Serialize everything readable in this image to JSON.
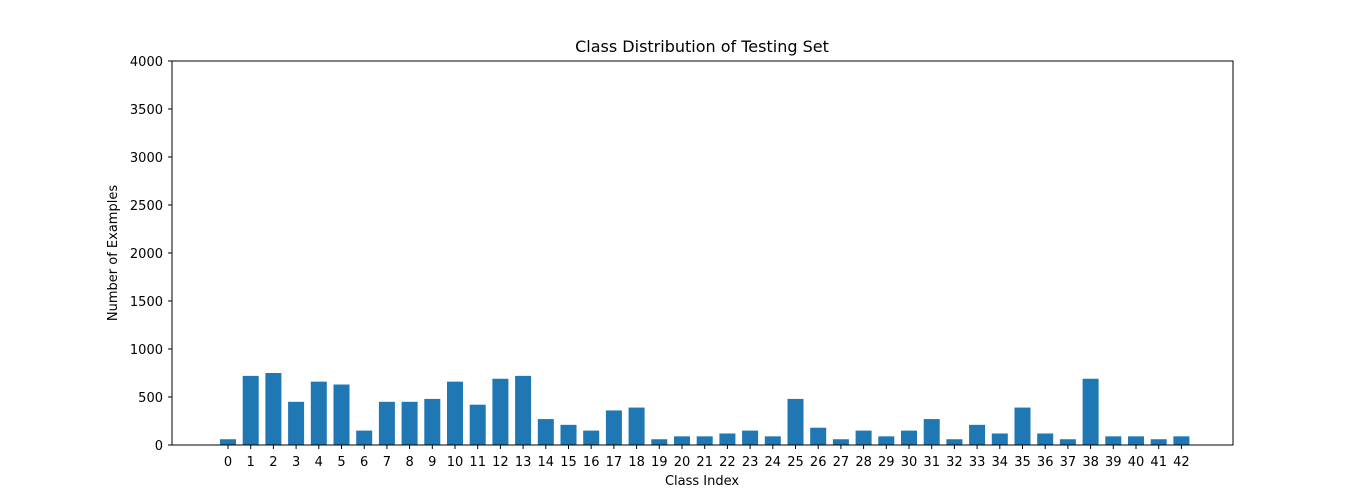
{
  "chart_data": {
    "type": "bar",
    "title": "Class Distribution of Testing Set",
    "xlabel": "Class Index",
    "ylabel": "Number of Examples",
    "ylim": [
      0,
      4000
    ],
    "yticks": [
      0,
      500,
      1000,
      1500,
      2000,
      2500,
      3000,
      3500,
      4000
    ],
    "categories": [
      "0",
      "1",
      "2",
      "3",
      "4",
      "5",
      "6",
      "7",
      "8",
      "9",
      "10",
      "11",
      "12",
      "13",
      "14",
      "15",
      "16",
      "17",
      "18",
      "19",
      "20",
      "21",
      "22",
      "23",
      "24",
      "25",
      "26",
      "27",
      "28",
      "29",
      "30",
      "31",
      "32",
      "33",
      "34",
      "35",
      "36",
      "37",
      "38",
      "39",
      "40",
      "41",
      "42"
    ],
    "values": [
      60,
      720,
      750,
      450,
      660,
      630,
      150,
      450,
      450,
      480,
      660,
      420,
      690,
      720,
      270,
      210,
      150,
      360,
      390,
      60,
      90,
      90,
      120,
      150,
      90,
      480,
      180,
      60,
      150,
      90,
      150,
      270,
      60,
      210,
      120,
      390,
      120,
      60,
      690,
      90,
      90,
      60,
      90
    ],
    "bar_color": "#1f77b4",
    "grid": false,
    "legend": "none"
  }
}
